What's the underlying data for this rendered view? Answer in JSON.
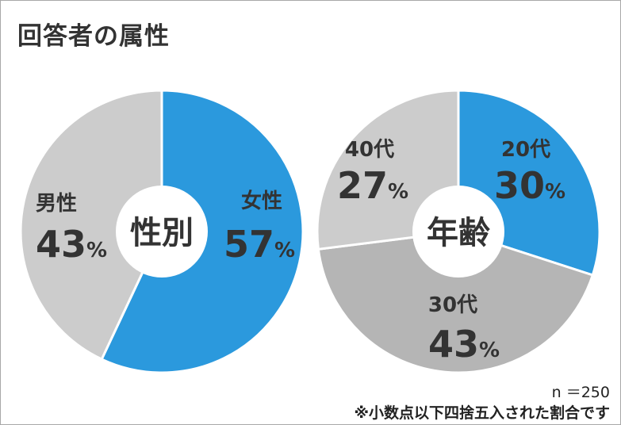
{
  "title": "回答者の属性",
  "sample_size": "n ＝250",
  "footnote": "※小数点以下四捨五入された割合です",
  "colors": {
    "blue": "#2b99dd",
    "light_gray": "#cccccc",
    "mid_gray": "#b5b5b5",
    "text": "#333333"
  },
  "chart_data": [
    {
      "type": "pie",
      "center_label": "性別",
      "categories": [
        "女性",
        "男性"
      ],
      "values": [
        57,
        43
      ],
      "value_labels": [
        "57",
        "43"
      ],
      "unit": "%",
      "slice_colors": [
        "#2b99dd",
        "#cccccc"
      ]
    },
    {
      "type": "pie",
      "center_label": "年齢",
      "categories": [
        "20代",
        "30代",
        "40代"
      ],
      "values": [
        30,
        43,
        27
      ],
      "value_labels": [
        "30",
        "43",
        "27"
      ],
      "unit": "%",
      "slice_colors": [
        "#2b99dd",
        "#b5b5b5",
        "#cccccc"
      ]
    }
  ]
}
